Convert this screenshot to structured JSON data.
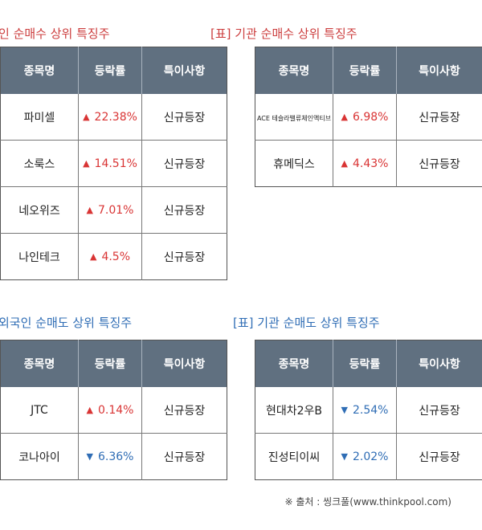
{
  "sections": [
    {
      "title": "인 순매수 상위 특징주",
      "color": "red",
      "headers": [
        "종목명",
        "등락률",
        "특이사항"
      ],
      "rows": [
        {
          "name": "파미셀",
          "dir": "up",
          "change": "22.38%",
          "note": "신규등장"
        },
        {
          "name": "소룩스",
          "dir": "up",
          "change": "14.51%",
          "note": "신규등장"
        },
        {
          "name": "네오위즈",
          "dir": "up",
          "change": "7.01%",
          "note": "신규등장"
        },
        {
          "name": "나인테크",
          "dir": "up",
          "change": "4.5%",
          "note": "신규등장"
        }
      ]
    },
    {
      "title": "[표] 기관 순매수 상위 특징주",
      "color": "red",
      "headers": [
        "종목명",
        "등락률",
        "특이사항"
      ],
      "rows": [
        {
          "name": "ACE 테슬라밸류체인액티브",
          "dir": "up",
          "change": "6.98%",
          "note": "신규등장"
        },
        {
          "name": "휴메딕스",
          "dir": "up",
          "change": "4.43%",
          "note": "신규등장"
        }
      ]
    },
    {
      "title": "외국인 순매도 상위 특징주",
      "color": "blue",
      "headers": [
        "종목명",
        "등락률",
        "특이사항"
      ],
      "rows": [
        {
          "name": "JTC",
          "dir": "up",
          "change": "0.14%",
          "note": "신규등장"
        },
        {
          "name": "코나아이",
          "dir": "down",
          "change": "6.36%",
          "note": "신규등장"
        }
      ]
    },
    {
      "title": "[표] 기관 순매도 상위 특징주",
      "color": "blue",
      "headers": [
        "종목명",
        "등락률",
        "특이사항"
      ],
      "rows": [
        {
          "name": "현대차2우B",
          "dir": "down",
          "change": "2.54%",
          "note": "신규등장"
        },
        {
          "name": "진성티이씨",
          "dir": "down",
          "change": "2.02%",
          "note": "신규등장"
        }
      ]
    }
  ],
  "arrows": {
    "up": "▲",
    "down": "▼"
  },
  "source": "※ 출처 : 씽크풀(www.thinkpool.com)"
}
